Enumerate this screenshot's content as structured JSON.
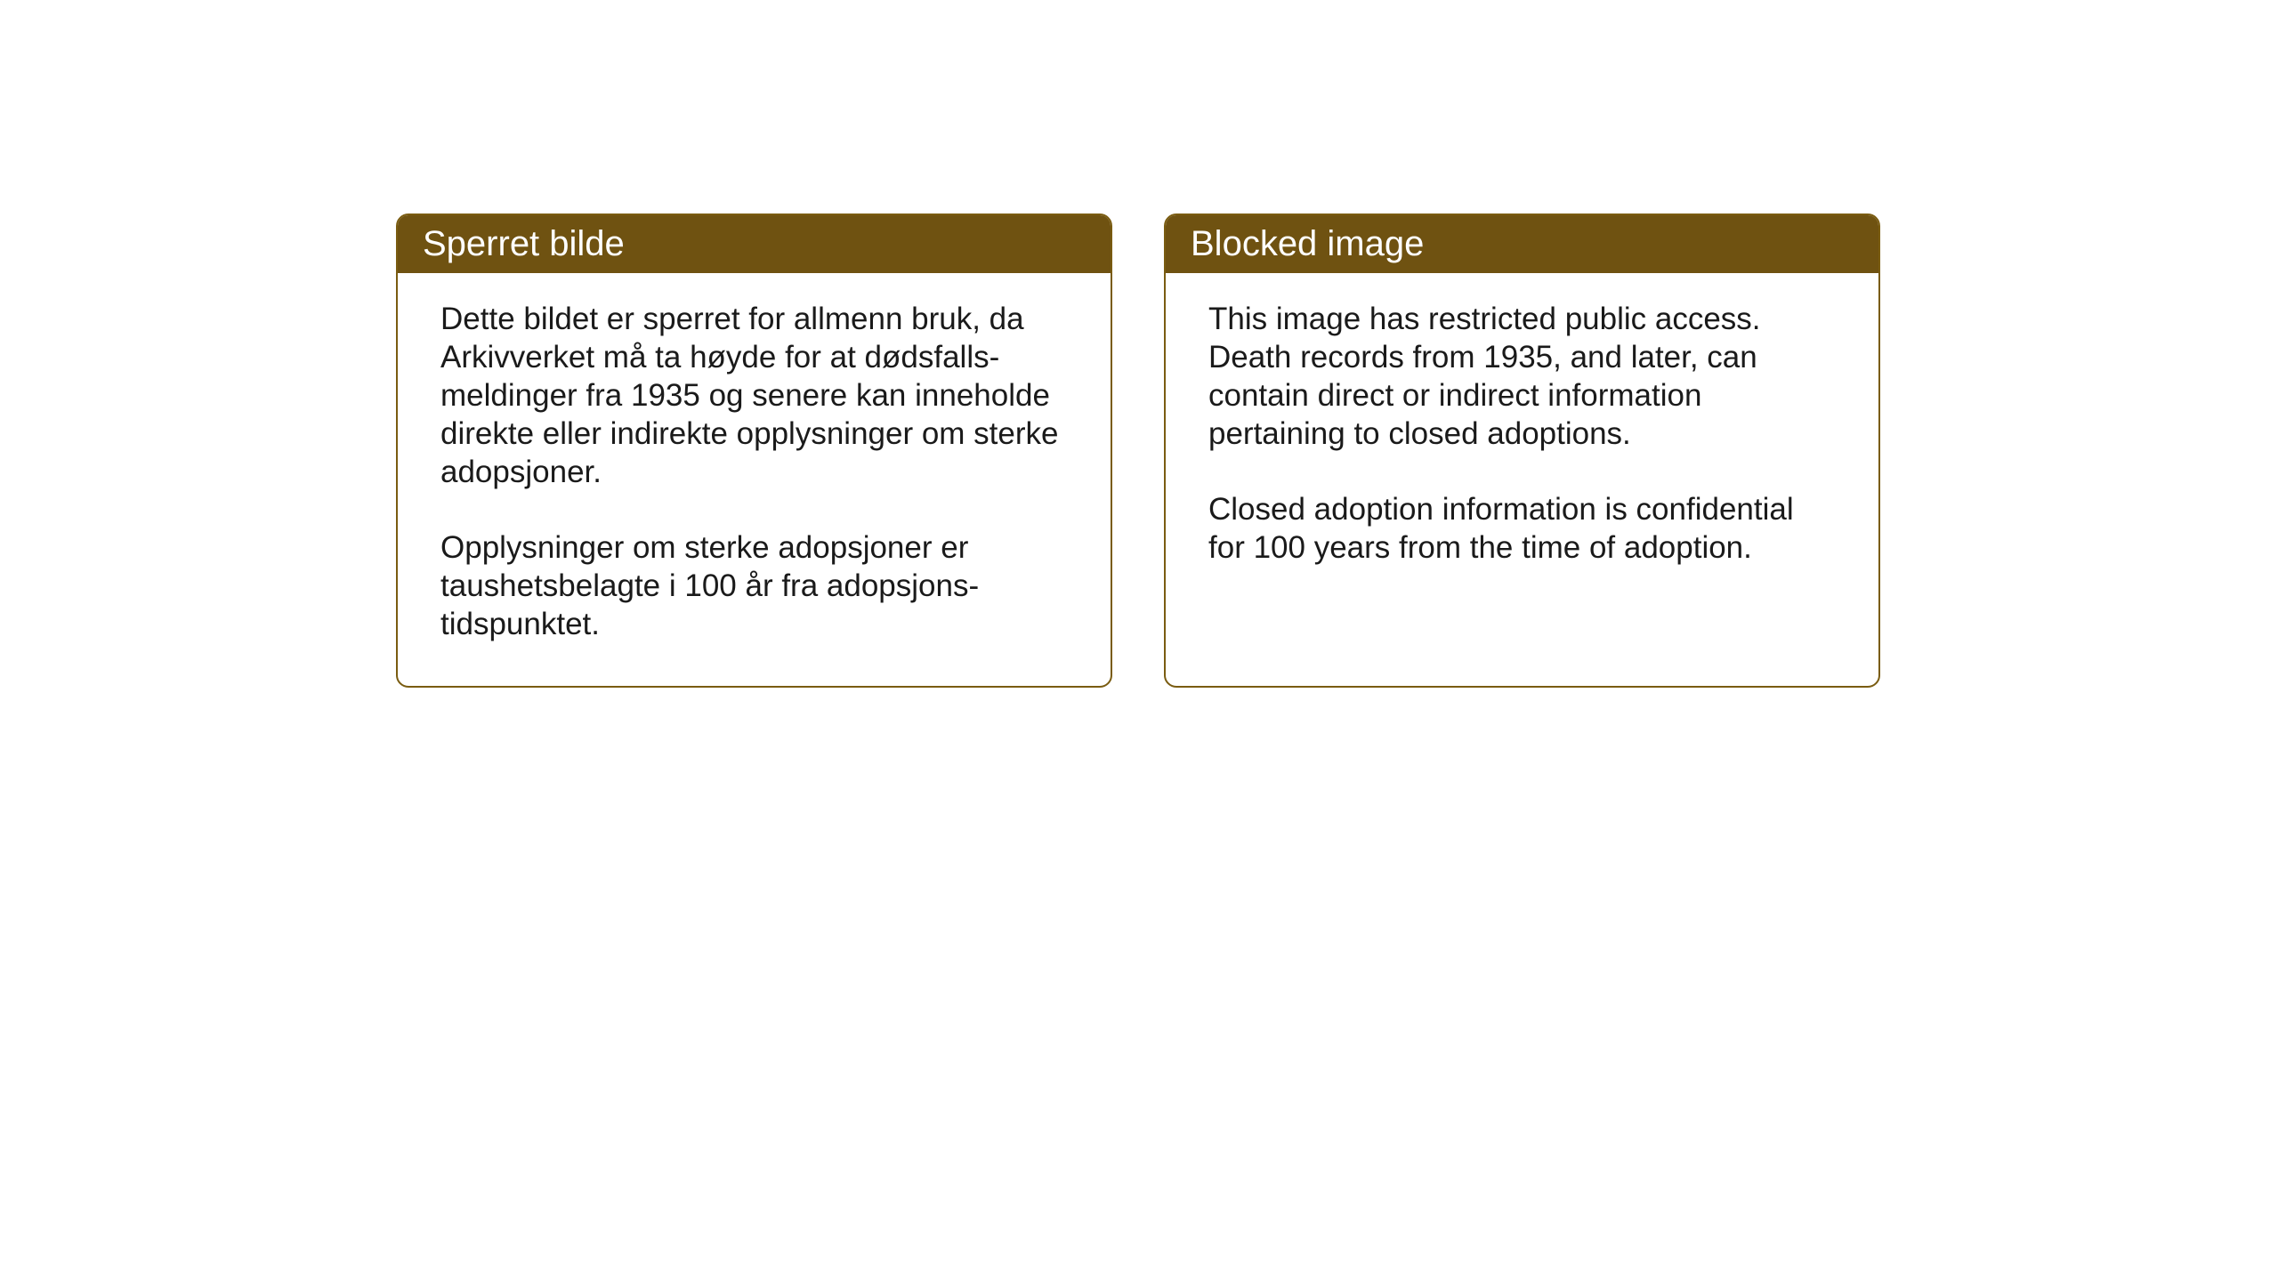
{
  "layout": {
    "background_color": "#ffffff",
    "box_border_color": "#7a5c11",
    "header_background_color": "#6f5211",
    "header_text_color": "#ffffff",
    "body_text_color": "#1a1a1a",
    "border_radius": 14,
    "header_fontsize": 40,
    "body_fontsize": 35
  },
  "boxes": [
    {
      "title": "Sperret bilde",
      "paragraphs": [
        "Dette bildet er sperret for allmenn bruk, da Arkivverket må ta høyde for at dødsfalls-meldinger fra 1935 og senere kan inneholde direkte eller indirekte opplysninger om sterke adopsjoner.",
        "Opplysninger om sterke adopsjoner er taushetsbelagte i 100 år fra adopsjons-tidspunktet."
      ]
    },
    {
      "title": "Blocked image",
      "paragraphs": [
        "This image has restricted public access. Death records from 1935, and later, can contain direct or indirect information pertaining to closed adoptions.",
        "Closed adoption information is confidential for 100 years from the time of adoption."
      ]
    }
  ]
}
